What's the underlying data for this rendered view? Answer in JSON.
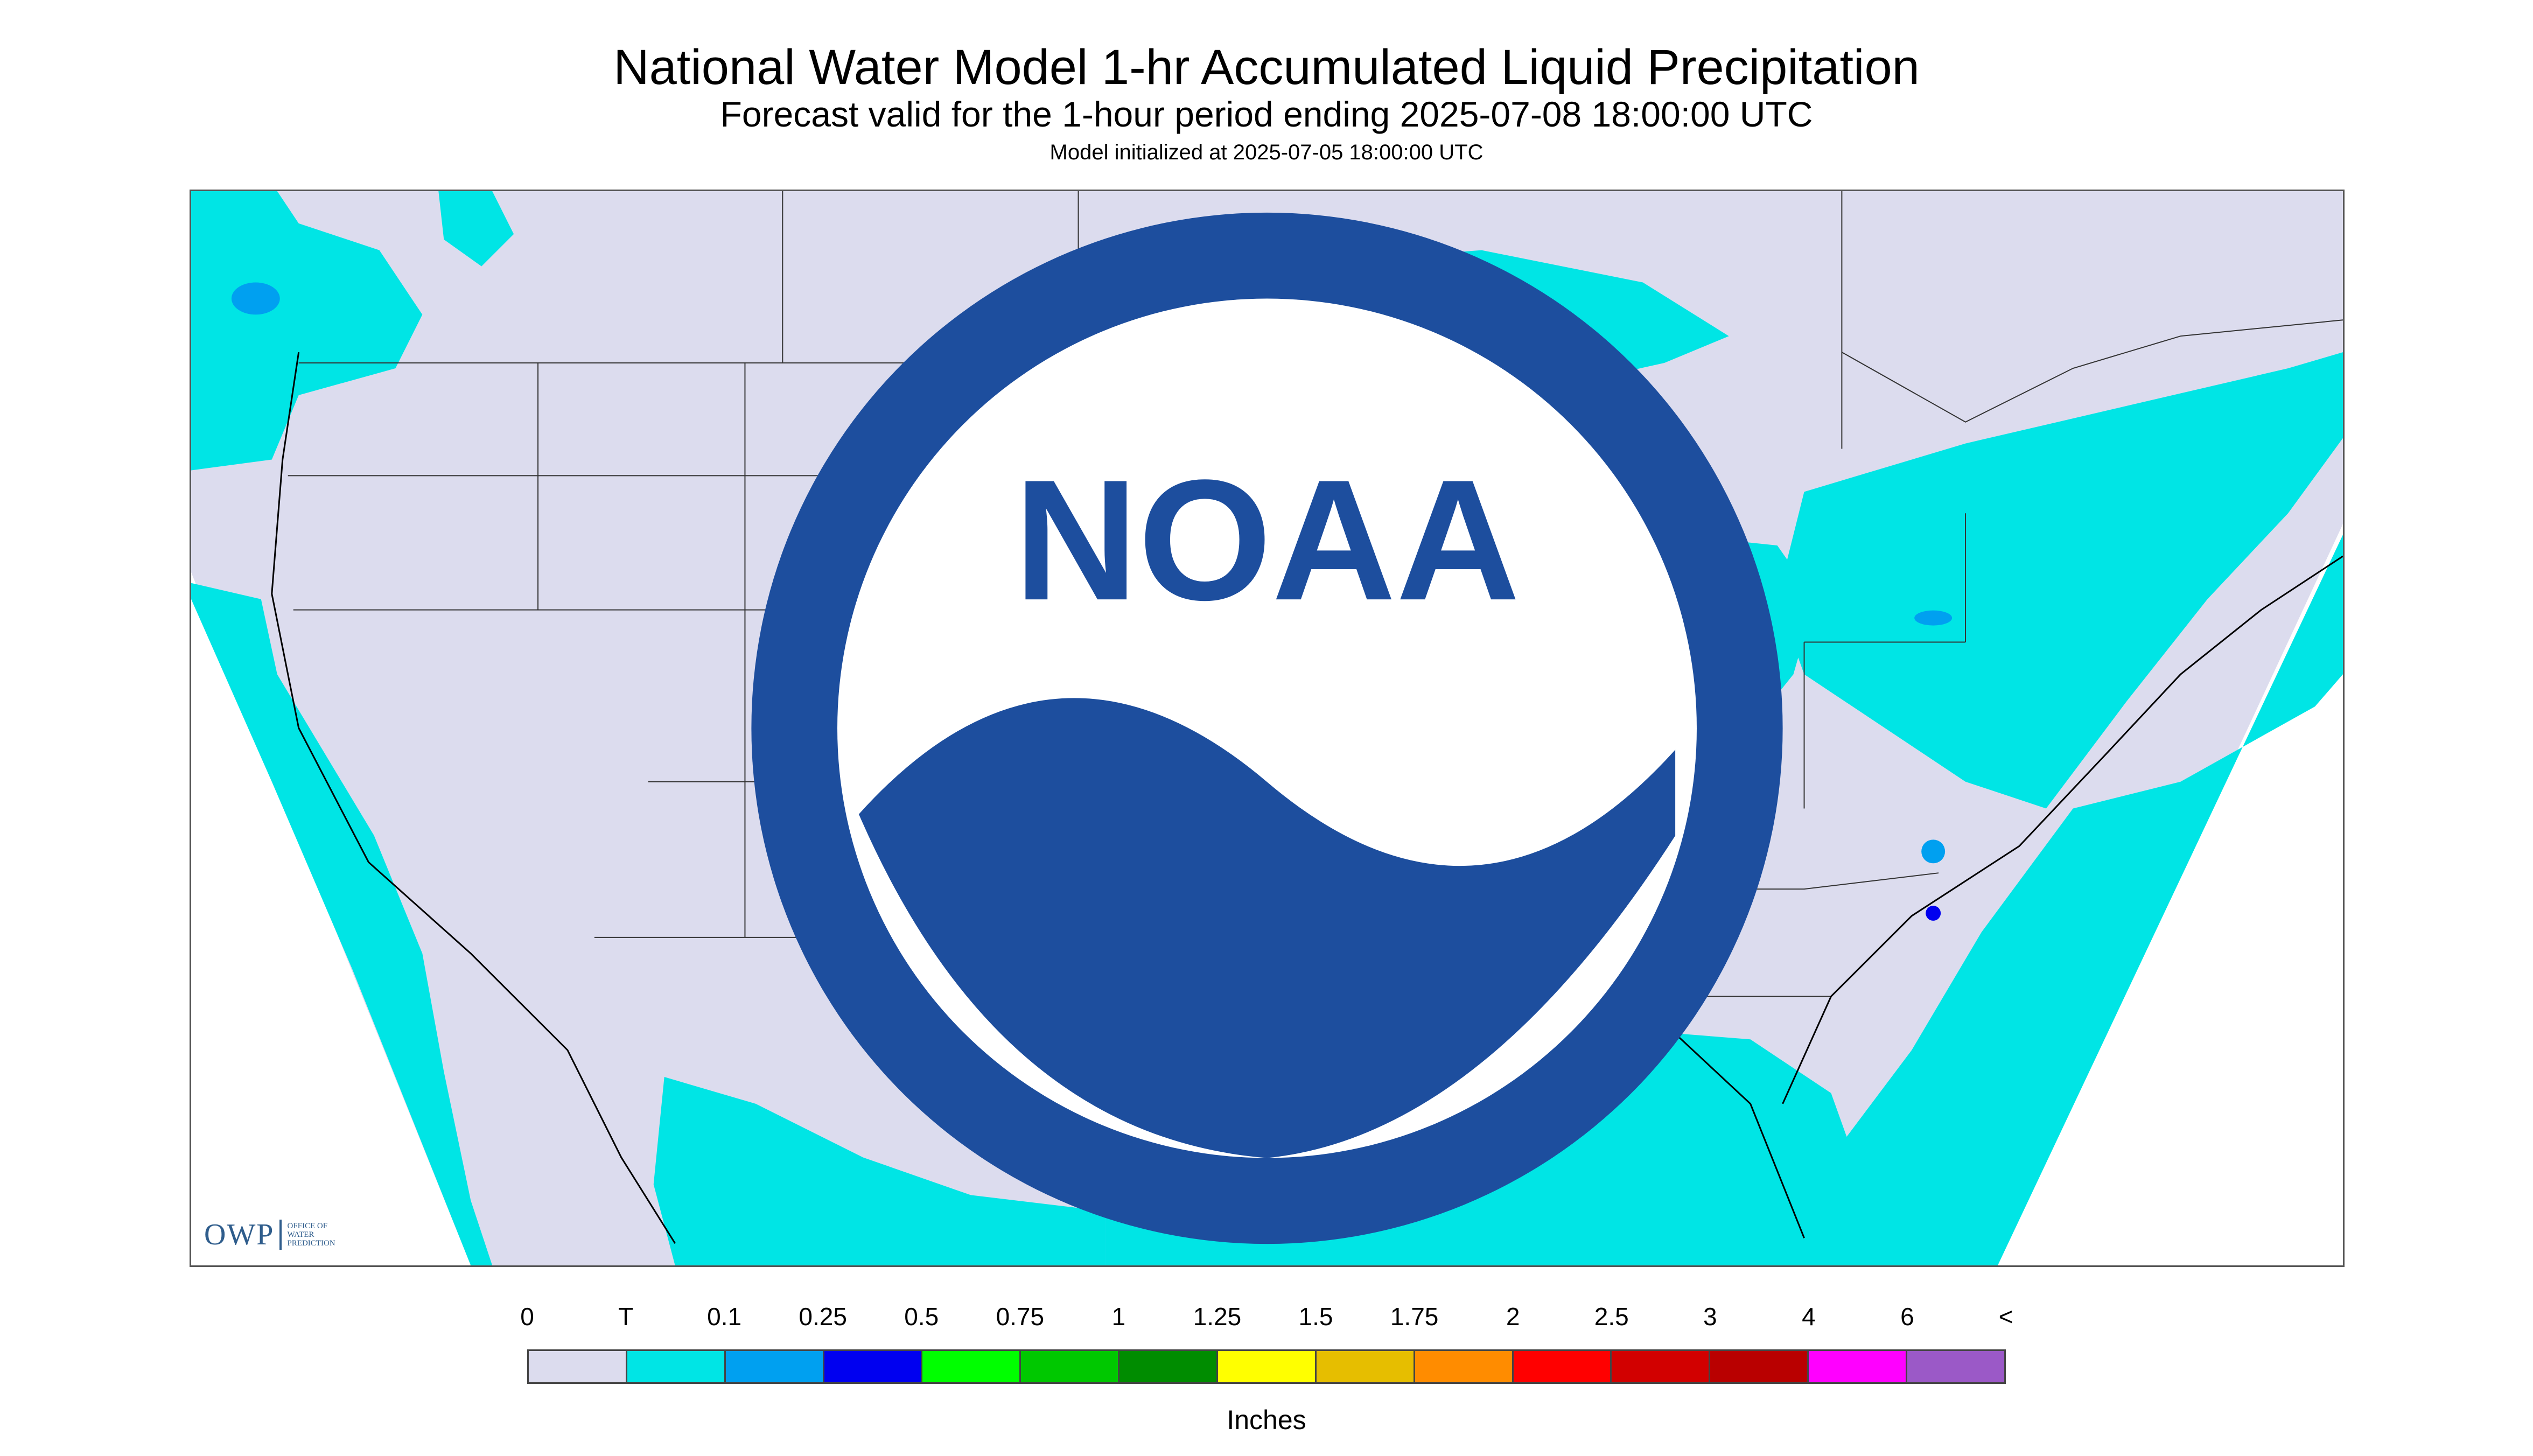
{
  "title": "National Water Model 1-hr Accumulated Liquid Precipitation",
  "subtitle": "Forecast valid for the 1-hour period ending 2025-07-08 18:00:00 UTC",
  "init": "Model initialized at 2025-07-05 18:00:00 UTC",
  "owp": {
    "abbr": "OWP",
    "line1": "OFFICE OF",
    "line2": "WATER",
    "line3": "PREDICTION"
  },
  "noaa_label": "NOAA",
  "colors": {
    "background": "#dcdcee",
    "trace": "#00e5e5",
    "light_blue": "#00a0f0",
    "blue": "#0000f0"
  },
  "legend": {
    "tick_labels": [
      "0",
      "T",
      "0.1",
      "0.25",
      "0.5",
      "0.75",
      "1",
      "1.25",
      "1.5",
      "1.75",
      "2",
      "2.5",
      "3",
      "4",
      "6",
      "<"
    ],
    "colors": [
      "#dcdcee",
      "#00e5e5",
      "#00a0f0",
      "#0000f0",
      "#00ff00",
      "#00c800",
      "#008c00",
      "#ffff00",
      "#e6be00",
      "#ff8c00",
      "#ff0000",
      "#d20000",
      "#b90000",
      "#ff00ff",
      "#9b59c7"
    ],
    "units": "Inches"
  }
}
